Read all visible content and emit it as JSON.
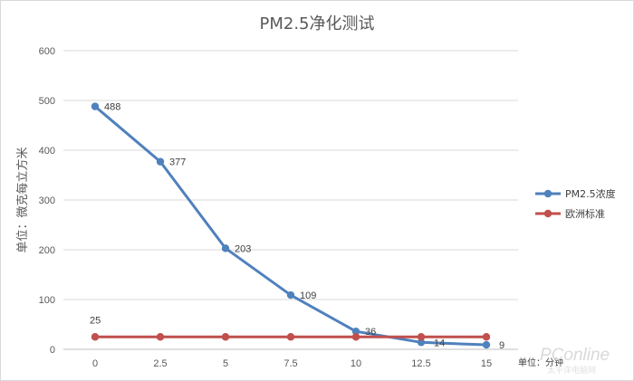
{
  "chart_data": {
    "type": "line",
    "title": "PM2.5净化测试",
    "ylabel": "单位：微克每立方米",
    "xunit_label": "单位：分钟",
    "x": [
      "0",
      "2.5",
      "5",
      "7.5",
      "10",
      "12.5",
      "15"
    ],
    "ylim": [
      0,
      600
    ],
    "yticks": [
      "0",
      "100",
      "200",
      "300",
      "400",
      "500",
      "600"
    ],
    "grid": "horizontal",
    "legend_position": "right",
    "series": [
      {
        "name": "PM2.5浓度",
        "color": "#4f81bd",
        "values": [
          488,
          377,
          203,
          109,
          36,
          14,
          9
        ],
        "labels": [
          "488",
          "377",
          "203",
          "109",
          "36",
          "14",
          "9"
        ]
      },
      {
        "name": "欧洲标准",
        "color": "#c0504d",
        "values": [
          25,
          25,
          25,
          25,
          25,
          25,
          25
        ],
        "labels": [
          "25"
        ]
      }
    ]
  },
  "watermark": {
    "brand": "PConline",
    "sub": "太平洋电脑网"
  }
}
